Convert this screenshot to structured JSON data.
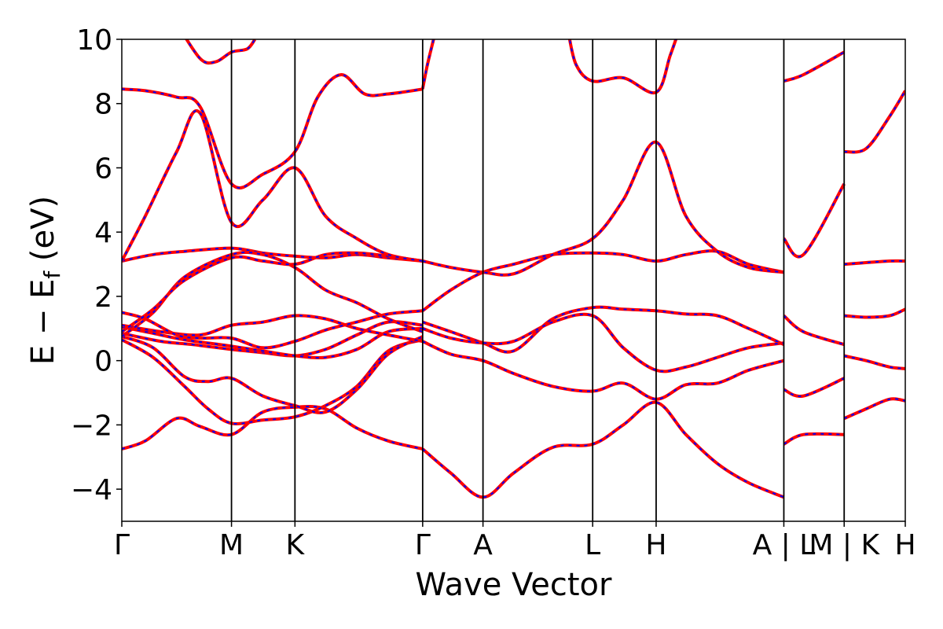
{
  "chart_data": {
    "type": "line",
    "xlabel": "Wave Vector",
    "ylabel_main": "E − E",
    "ylabel_sub": "f",
    "ylabel_unit": " (eV)",
    "ylim": [
      -5,
      10
    ],
    "yticks": [
      -4,
      -2,
      0,
      2,
      4,
      6,
      8,
      10
    ],
    "ytick_labels": [
      "−4",
      "−2",
      "0",
      "2",
      "4",
      "6",
      "8",
      "10"
    ],
    "xlim": [
      0,
      1
    ],
    "kpoints": [
      {
        "label": "Γ",
        "x": 0.0
      },
      {
        "label": "M",
        "x": 0.14
      },
      {
        "label": "K",
        "x": 0.221
      },
      {
        "label": "Γ",
        "x": 0.384
      },
      {
        "label": "A",
        "x": 0.461
      },
      {
        "label": "L",
        "x": 0.601
      },
      {
        "label": "H",
        "x": 0.682
      },
      {
        "label": "A | L",
        "x": 0.845
      },
      {
        "label": "M | K",
        "x": 0.922
      },
      {
        "label": "H",
        "x": 1.0
      }
    ],
    "colors": {
      "primary": "#ff0000",
      "overlay": "#0000ff"
    },
    "series": [
      {
        "x": [
          0,
          0.03,
          0.07,
          0.1,
          0.14,
          0.18,
          0.221,
          0.26,
          0.3,
          0.34,
          0.384
        ],
        "values": [
          -2.75,
          -2.5,
          -1.8,
          -2.05,
          -2.3,
          -1.6,
          -1.45,
          -1.5,
          -2.1,
          -2.5,
          -2.75
        ]
      },
      {
        "x": [
          0,
          0.04,
          0.08,
          0.11,
          0.14,
          0.18,
          0.221,
          0.26,
          0.3,
          0.34,
          0.384
        ],
        "values": [
          0.65,
          0.1,
          -0.8,
          -1.5,
          -1.95,
          -1.85,
          -1.75,
          -1.4,
          -0.8,
          0.3,
          0.65
        ]
      },
      {
        "x": [
          0,
          0.04,
          0.08,
          0.11,
          0.14,
          0.18,
          0.221,
          0.26,
          0.3,
          0.34,
          0.384
        ],
        "values": [
          0.75,
          0.4,
          -0.5,
          -0.65,
          -0.55,
          -1.1,
          -1.4,
          -1.6,
          -0.9,
          0.2,
          0.75
        ]
      },
      {
        "x": [
          0,
          0.05,
          0.09,
          0.14,
          0.18,
          0.221,
          0.26,
          0.3,
          0.34,
          0.384
        ],
        "values": [
          0.85,
          0.6,
          0.5,
          0.35,
          0.25,
          0.15,
          0.35,
          0.8,
          1.2,
          1.1
        ]
      },
      {
        "x": [
          0,
          0.04,
          0.08,
          0.14,
          0.18,
          0.221,
          0.26,
          0.3,
          0.34,
          0.384
        ],
        "values": [
          1.05,
          0.85,
          0.65,
          0.45,
          0.3,
          0.15,
          0.1,
          0.35,
          0.9,
          1.0
        ]
      },
      {
        "x": [
          0,
          0.05,
          0.1,
          0.14,
          0.18,
          0.221,
          0.26,
          0.3,
          0.34,
          0.384
        ],
        "values": [
          1.1,
          0.9,
          0.8,
          1.1,
          1.2,
          1.4,
          1.3,
          1.0,
          0.8,
          0.6
        ]
      },
      {
        "x": [
          0,
          0.03,
          0.07,
          0.1,
          0.14,
          0.18,
          0.221,
          0.26,
          0.3,
          0.34,
          0.384
        ],
        "values": [
          1.5,
          1.3,
          0.8,
          0.7,
          0.7,
          0.4,
          0.6,
          0.95,
          1.2,
          1.45,
          1.55
        ]
      },
      {
        "x": [
          0,
          0.04,
          0.08,
          0.14,
          0.18,
          0.221,
          0.26,
          0.3,
          0.34,
          0.384
        ],
        "values": [
          3.1,
          3.3,
          3.4,
          3.5,
          3.35,
          3.25,
          3.2,
          3.3,
          3.2,
          3.1
        ]
      },
      {
        "x": [
          0,
          0.04,
          0.08,
          0.14,
          0.18,
          0.221,
          0.26,
          0.3,
          0.34,
          0.384
        ],
        "values": [
          0.75,
          1.5,
          2.6,
          3.3,
          3.3,
          2.9,
          2.2,
          1.8,
          1.3,
          0.9
        ]
      },
      {
        "x": [
          0,
          0.04,
          0.08,
          0.14,
          0.18,
          0.221,
          0.26,
          0.3,
          0.34,
          0.384
        ],
        "values": [
          0.9,
          1.6,
          2.5,
          3.2,
          3.1,
          3.0,
          3.3,
          3.35,
          3.25,
          3.1
        ]
      },
      {
        "x": [
          0,
          0.03,
          0.07,
          0.1,
          0.14,
          0.18,
          0.221,
          0.25,
          0.28,
          0.31,
          0.34,
          0.384
        ],
        "values": [
          8.45,
          8.4,
          8.2,
          7.9,
          5.5,
          5.8,
          6.5,
          8.2,
          8.9,
          8.3,
          8.3,
          8.45
        ]
      },
      {
        "x": [
          0,
          0.03,
          0.07,
          0.1,
          0.14,
          0.18,
          0.221,
          0.26,
          0.3,
          0.34,
          0.384
        ],
        "values": [
          3.1,
          4.5,
          6.5,
          7.7,
          4.3,
          5.0,
          6.0,
          4.5,
          3.8,
          3.3,
          3.1
        ]
      },
      {
        "x": [
          0.07,
          0.1,
          0.12,
          0.14,
          0.16,
          0.17
        ],
        "values": [
          10.5,
          9.4,
          9.3,
          9.6,
          9.7,
          10.0
        ]
      },
      {
        "x": [
          0.384,
          0.42,
          0.461,
          0.5,
          0.55,
          0.601,
          0.64,
          0.682,
          0.72,
          0.76,
          0.8,
          0.845
        ],
        "values": [
          1.2,
          0.9,
          0.55,
          0.3,
          1.3,
          1.65,
          1.6,
          1.55,
          1.45,
          1.4,
          1.0,
          0.5
        ]
      },
      {
        "x": [
          0.384,
          0.42,
          0.461,
          0.5,
          0.55,
          0.601,
          0.64,
          0.682,
          0.72,
          0.76,
          0.8,
          0.845
        ],
        "values": [
          0.6,
          0.2,
          0.0,
          -0.4,
          -0.8,
          -0.95,
          -0.7,
          -1.2,
          -0.75,
          -0.7,
          -0.3,
          0.0
        ]
      },
      {
        "x": [
          0.384,
          0.42,
          0.461,
          0.5,
          0.55,
          0.601,
          0.64,
          0.682,
          0.72,
          0.76,
          0.8,
          0.845
        ],
        "values": [
          1.0,
          0.7,
          0.55,
          0.6,
          1.2,
          1.4,
          0.4,
          -0.3,
          -0.2,
          0.1,
          0.4,
          0.55
        ]
      },
      {
        "x": [
          0.384,
          0.42,
          0.461,
          0.5,
          0.55,
          0.601,
          0.64,
          0.682,
          0.72,
          0.76,
          0.8,
          0.845
        ],
        "values": [
          1.55,
          2.2,
          2.75,
          3.0,
          3.3,
          3.35,
          3.3,
          3.1,
          3.3,
          3.4,
          3.0,
          2.75
        ]
      },
      {
        "x": [
          0.384,
          0.42,
          0.461,
          0.5,
          0.55,
          0.601,
          0.64,
          0.682,
          0.72,
          0.76,
          0.8,
          0.845
        ],
        "values": [
          3.1,
          2.9,
          2.75,
          2.7,
          3.3,
          3.8,
          5.0,
          6.8,
          4.5,
          3.4,
          2.9,
          2.75
        ]
      },
      {
        "x": [
          0.384,
          0.42,
          0.461,
          0.5,
          0.55,
          0.601,
          0.64,
          0.682,
          0.72,
          0.76,
          0.8,
          0.845
        ],
        "values": [
          -2.75,
          -3.5,
          -4.25,
          -3.5,
          -2.7,
          -2.6,
          -2.0,
          -1.3,
          -2.3,
          -3.2,
          -3.8,
          -4.25
        ]
      },
      {
        "x": [
          0.384,
          0.39,
          0.4
        ],
        "values": [
          8.45,
          9.2,
          10.2
        ]
      },
      {
        "x": [
          0.57,
          0.58,
          0.601,
          0.64,
          0.682,
          0.7,
          0.71
        ],
        "values": [
          10.2,
          9.2,
          8.7,
          8.8,
          8.35,
          9.5,
          10.2
        ]
      },
      {
        "x": [
          0.845,
          0.87,
          0.922
        ],
        "values": [
          3.8,
          3.3,
          5.5
        ]
      },
      {
        "x": [
          0.845,
          0.87,
          0.922
        ],
        "values": [
          8.7,
          8.9,
          9.6
        ]
      },
      {
        "x": [
          0.845,
          0.87,
          0.922
        ],
        "values": [
          1.4,
          0.9,
          0.5
        ]
      },
      {
        "x": [
          0.845,
          0.87,
          0.922
        ],
        "values": [
          -2.6,
          -2.3,
          -2.3
        ]
      },
      {
        "x": [
          0.845,
          0.87,
          0.922
        ],
        "values": [
          -0.9,
          -1.1,
          -0.55
        ]
      },
      {
        "x": [
          0.922,
          0.95,
          0.98,
          1.0
        ],
        "values": [
          6.5,
          6.6,
          7.6,
          8.4
        ]
      },
      {
        "x": [
          0.922,
          0.95,
          0.98,
          1.0
        ],
        "values": [
          3.0,
          3.05,
          3.1,
          3.1
        ]
      },
      {
        "x": [
          0.922,
          0.95,
          0.98,
          1.0
        ],
        "values": [
          1.4,
          1.35,
          1.4,
          1.6
        ]
      },
      {
        "x": [
          0.922,
          0.95,
          0.98,
          1.0
        ],
        "values": [
          0.15,
          0.0,
          -0.2,
          -0.25
        ]
      },
      {
        "x": [
          0.922,
          0.95,
          0.98,
          1.0
        ],
        "values": [
          -1.8,
          -1.5,
          -1.2,
          -1.25
        ]
      }
    ]
  }
}
